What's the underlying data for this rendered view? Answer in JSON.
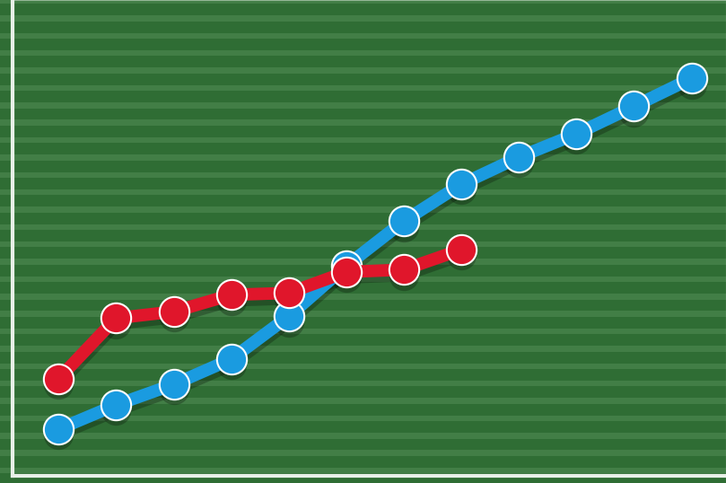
{
  "chart_data": {
    "type": "line",
    "x": [
      0,
      1,
      2,
      3,
      4,
      5,
      6,
      7,
      8,
      9,
      10,
      11
    ],
    "series": [
      {
        "color": "#1a9be0",
        "marker": "o",
        "line_style": "solid",
        "values": [
          10.0,
          15.2,
          19.6,
          25.0,
          34.2,
          45.0,
          54.6,
          62.5,
          68.3,
          73.3,
          79.2,
          85.2
        ]
      },
      {
        "color": "#e0162b",
        "marker": "o",
        "line_style": "solid",
        "values": [
          20.8,
          33.8,
          35.2,
          38.8,
          39.2,
          43.7,
          44.2,
          48.5,
          null,
          null,
          null,
          null
        ]
      }
    ],
    "xlim": [
      -0.8,
      11.6
    ],
    "ylim": [
      0,
      102
    ],
    "xticks": [],
    "yticks": [],
    "grid": false,
    "tick_labels": false
  }
}
